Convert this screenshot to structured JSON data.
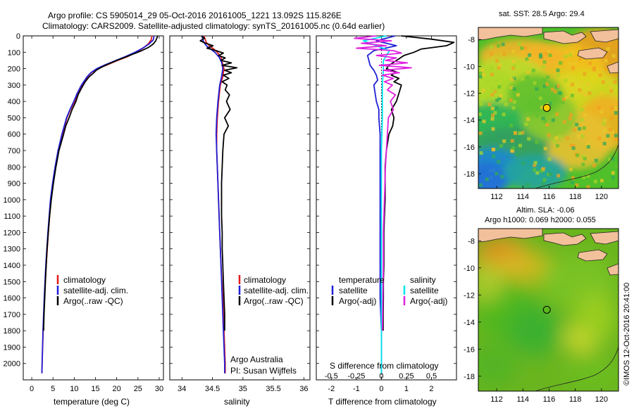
{
  "header": {
    "line1": "Argo profile: CS 5905014_29 05-Oct-2016 20161005_1221 13.092S 115.826E",
    "line2": "Climatology: CARS2009. Satellite-adjusted climatology: synTS_20161005.nc (0.64d earlier)"
  },
  "colors": {
    "climatology": "#e31a1c",
    "satellite": "#1f1fd6",
    "argo": "#000000",
    "salinity_satellite": "#00e5ee",
    "salinity_argo": "#e020e0",
    "land": "#f2c09a",
    "float_marker": "#ffd000"
  },
  "chart_data": [
    {
      "type": "line",
      "id": "temperature",
      "xlabel": "temperature (deg C)",
      "ylabel": "",
      "xlim": [
        -2,
        31
      ],
      "ylim": [
        2100,
        0
      ],
      "xticks": [
        0,
        5,
        10,
        15,
        20,
        25,
        30
      ],
      "yticks": [
        0,
        100,
        200,
        300,
        400,
        500,
        600,
        700,
        800,
        900,
        1000,
        1100,
        1200,
        1300,
        1400,
        1500,
        1600,
        1700,
        1800,
        1900,
        2000
      ],
      "legend": [
        "climatology",
        "satellite-adj. clim.",
        "Argo(..raw -QC)"
      ],
      "series": [
        {
          "name": "climatology",
          "color": "#e31a1c",
          "depth": [
            0,
            25,
            50,
            75,
            100,
            125,
            150,
            175,
            200,
            225,
            250,
            300,
            350,
            400,
            450,
            500,
            600,
            700,
            800,
            900,
            1000,
            1200,
            1400,
            1600,
            1800,
            2000,
            2060
          ],
          "values": [
            28.3,
            28.1,
            27.4,
            26.2,
            24.6,
            22.7,
            20.2,
            17.9,
            15.6,
            14.0,
            13.1,
            12.0,
            11.0,
            10.1,
            9.1,
            8.3,
            7.2,
            6.3,
            5.6,
            5.0,
            4.5,
            3.9,
            3.4,
            3.0,
            2.7,
            2.45,
            2.4
          ]
        },
        {
          "name": "satellite-adj. clim.",
          "color": "#1f1fd6",
          "depth": [
            0,
            25,
            50,
            75,
            100,
            125,
            150,
            175,
            200,
            225,
            250,
            300,
            350,
            400,
            450,
            500,
            600,
            700,
            800,
            900,
            1000,
            1200,
            1400,
            1600,
            1800,
            2000,
            2060
          ],
          "values": [
            28.8,
            28.6,
            27.6,
            26.1,
            24.3,
            22.2,
            19.8,
            17.4,
            15.3,
            13.9,
            13.0,
            11.7,
            10.7,
            9.9,
            9.0,
            8.2,
            7.1,
            6.2,
            5.5,
            4.9,
            4.4,
            3.8,
            3.3,
            2.95,
            2.65,
            2.45,
            2.4
          ]
        },
        {
          "name": "Argo(..raw -QC)",
          "color": "#000000",
          "depth": [
            0,
            10,
            30,
            50,
            70,
            90,
            110,
            130,
            150,
            170,
            190,
            210,
            230,
            250,
            280,
            320,
            360,
            400,
            450,
            500,
            550,
            600,
            700,
            800,
            900,
            1000,
            1100,
            1200,
            1300,
            1400,
            1500,
            1600,
            1700,
            1800
          ],
          "values": [
            29.6,
            29.5,
            29.2,
            28.6,
            27.5,
            25.9,
            24.0,
            22.0,
            20.0,
            18.2,
            16.5,
            15.2,
            14.4,
            13.5,
            12.6,
            11.7,
            10.9,
            10.4,
            9.5,
            8.8,
            8.0,
            7.5,
            6.4,
            5.7,
            5.1,
            4.6,
            4.2,
            3.9,
            3.6,
            3.4,
            3.2,
            3.05,
            2.9,
            2.8
          ]
        }
      ]
    },
    {
      "type": "line",
      "id": "salinity",
      "xlabel": "salinity",
      "xlim": [
        33.8,
        36.1
      ],
      "ylim": [
        2100,
        0
      ],
      "xticks": [
        34,
        34.5,
        35,
        35.5,
        36
      ],
      "xtick_labels": [
        "34",
        "34.5",
        "35",
        "35.5",
        "36"
      ],
      "legend": [
        "climatology",
        "satellite-adj. clim.",
        "Argo(..raw -QC)"
      ],
      "annotations": [
        "Argo Australia",
        "PI: Susan Wijffels"
      ],
      "series": [
        {
          "name": "climatology",
          "color": "#e31a1c",
          "depth": [
            0,
            20,
            40,
            60,
            80,
            100,
            130,
            160,
            200,
            250,
            300,
            400,
            500,
            600,
            700,
            800,
            1000,
            1200,
            1400,
            1600,
            1800,
            2000,
            2060
          ],
          "values": [
            34.36,
            34.38,
            34.4,
            34.45,
            34.52,
            34.58,
            34.64,
            34.66,
            34.69,
            34.67,
            34.63,
            34.6,
            34.58,
            34.57,
            34.57,
            34.58,
            34.6,
            34.62,
            34.64,
            34.67,
            34.69,
            34.71,
            34.71
          ]
        },
        {
          "name": "satellite-adj. clim.",
          "color": "#1f1fd6",
          "depth": [
            0,
            20,
            40,
            60,
            80,
            100,
            130,
            160,
            200,
            250,
            300,
            400,
            500,
            600,
            700,
            800,
            1000,
            1200,
            1400,
            1600,
            1800,
            2000,
            2060
          ],
          "values": [
            34.33,
            34.34,
            34.36,
            34.4,
            34.47,
            34.54,
            34.61,
            34.65,
            34.67,
            34.65,
            34.62,
            34.59,
            34.57,
            34.56,
            34.57,
            34.58,
            34.6,
            34.62,
            34.64,
            34.66,
            34.68,
            34.7,
            34.7
          ]
        },
        {
          "name": "Argo(..raw -QC)",
          "color": "#000000",
          "depth": [
            0,
            15,
            30,
            45,
            60,
            75,
            90,
            105,
            120,
            135,
            150,
            165,
            180,
            195,
            210,
            225,
            240,
            260,
            280,
            300,
            330,
            360,
            400,
            450,
            500,
            550,
            600,
            700,
            800,
            900,
            1000,
            1100,
            1200,
            1300,
            1400,
            1500,
            1600,
            1700,
            1800
          ],
          "values": [
            34.32,
            34.37,
            34.3,
            34.39,
            34.51,
            34.41,
            34.56,
            34.68,
            34.6,
            34.71,
            34.64,
            34.81,
            34.66,
            34.9,
            34.7,
            34.81,
            34.68,
            34.77,
            34.66,
            34.74,
            34.71,
            34.78,
            34.73,
            34.79,
            34.7,
            34.76,
            34.69,
            34.67,
            34.66,
            34.65,
            34.65,
            34.65,
            34.66,
            34.66,
            34.67,
            34.68,
            34.69,
            34.7,
            34.7
          ]
        }
      ]
    },
    {
      "type": "line",
      "id": "difference",
      "xlabel": "T difference from climatology",
      "x2label": "S difference from climatology",
      "xlim": [
        -2.6,
        3.0
      ],
      "ylim": [
        2100,
        0
      ],
      "xticks": [
        -2,
        -1,
        0,
        1,
        2
      ],
      "x2ticks": [
        -0.5,
        -0.25,
        0,
        0.25,
        0.5
      ],
      "x2tick_labels": [
        "-0.5",
        "-0.25",
        "0",
        "0.25",
        "0.5"
      ],
      "legend_temperature": {
        "title": "temperature",
        "items": [
          "satellite",
          "Argo(-adj)"
        ]
      },
      "legend_salinity": {
        "title": "salinity",
        "items": [
          "satellite",
          "Argo(-adj)"
        ]
      },
      "series": [
        {
          "name": "temperature satellite",
          "color": "#1f1fd6",
          "depth": [
            0,
            30,
            60,
            90,
            120,
            150,
            180,
            210,
            240,
            270,
            300,
            350,
            400,
            450,
            500,
            600,
            700,
            800,
            1000,
            1200,
            1400,
            1600,
            1800,
            2000,
            2060
          ],
          "values": [
            0.55,
            -0.2,
            0.6,
            -0.3,
            -0.55,
            -0.5,
            -0.45,
            -0.3,
            -0.2,
            -0.15,
            -0.3,
            -0.25,
            -0.2,
            -0.1,
            -0.1,
            -0.05,
            -0.05,
            -0.05,
            -0.05,
            -0.05,
            -0.05,
            -0.05,
            0.0,
            0.0,
            0.0
          ]
        },
        {
          "name": "temperature Argo(-adj)",
          "color": "#000000",
          "depth": [
            0,
            20,
            40,
            60,
            80,
            100,
            120,
            140,
            160,
            180,
            200,
            220,
            240,
            260,
            280,
            300,
            350,
            400,
            450,
            500,
            550,
            600,
            700,
            800,
            900,
            1000,
            1100,
            1200,
            1300,
            1400,
            1500,
            1600,
            1700,
            1800
          ],
          "values": [
            0.8,
            2.0,
            2.9,
            2.6,
            1.6,
            1.3,
            0.9,
            0.7,
            0.5,
            0.3,
            0.2,
            0.6,
            0.4,
            0.7,
            0.5,
            0.8,
            0.7,
            0.6,
            0.4,
            0.5,
            0.45,
            0.3,
            0.2,
            0.15,
            0.15,
            0.15,
            0.12,
            0.1,
            0.1,
            0.1,
            0.08,
            0.08,
            0.07,
            0.07
          ]
        },
        {
          "name": "salinity satellite",
          "color": "#00e5ee",
          "depth": [
            0,
            30,
            60,
            90,
            120,
            150,
            200,
            300,
            400,
            500,
            700,
            1000,
            1500,
            2000,
            2060
          ],
          "values": [
            0.05,
            -0.18,
            -0.05,
            0.08,
            0.05,
            0.02,
            0.02,
            0.01,
            0.01,
            0.01,
            0.0,
            0.0,
            0.0,
            0.0,
            0.0
          ]
        },
        {
          "name": "salinity Argo(-adj)",
          "color": "#e020e0",
          "depth": [
            0,
            15,
            30,
            45,
            60,
            75,
            90,
            105,
            120,
            135,
            150,
            165,
            180,
            195,
            210,
            225,
            240,
            260,
            280,
            300,
            330,
            360,
            400,
            450,
            500,
            600,
            700,
            800,
            1000,
            1200,
            1400,
            1600,
            1800
          ],
          "values": [
            -0.05,
            -0.27,
            0.1,
            -0.2,
            0.05,
            -0.25,
            0.12,
            0.2,
            -0.05,
            0.15,
            0.04,
            0.26,
            -0.02,
            0.3,
            0.02,
            0.18,
            0.01,
            0.12,
            0.03,
            0.11,
            0.06,
            0.14,
            0.09,
            0.12,
            0.07,
            0.06,
            0.05,
            0.04,
            0.03,
            0.02,
            0.02,
            0.015,
            0.01
          ]
        }
      ]
    },
    {
      "type": "heatmap",
      "id": "sst_map",
      "title": "sat. SST: 28.5  Argo: 29.4",
      "xticks": [
        112,
        114,
        116,
        118,
        120
      ],
      "yticks": [
        -8,
        -10,
        -12,
        -14,
        -16,
        -18
      ],
      "xlim": [
        110.6,
        121.3
      ],
      "ylim": [
        -19.1,
        -7.1
      ],
      "float_position": {
        "lon": 115.826,
        "lat": -13.092
      }
    },
    {
      "type": "heatmap",
      "id": "sla_map",
      "title": "Altim. SLA: -0.06",
      "subtitle": "Argo h1000: 0.069 h2000: 0.055",
      "xticks": [
        112,
        114,
        116,
        118,
        120
      ],
      "yticks": [
        -8,
        -10,
        -12,
        -14,
        -16,
        -18
      ],
      "xlim": [
        110.6,
        121.3
      ],
      "ylim": [
        -19.1,
        -7.1
      ],
      "float_position": {
        "lon": 115.826,
        "lat": -13.092
      },
      "side_label": "©IMOS 12-Oct-2016 20:41:00"
    }
  ]
}
